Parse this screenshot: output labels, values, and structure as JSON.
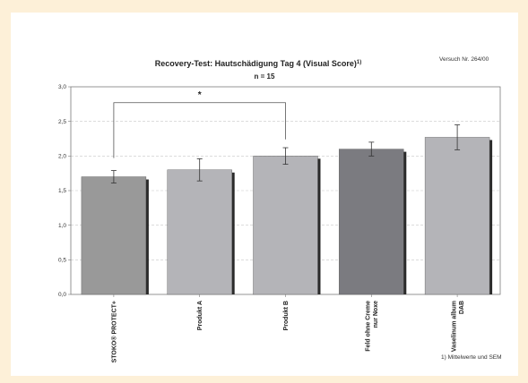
{
  "chart_data": {
    "type": "bar",
    "title": "Recovery-Test: Hautschädigung Tag 4 (Visual Score)",
    "title_superscript": "1)",
    "subtitle": "n = 15",
    "corner_note": "Versuch Nr. 264/00",
    "footnote": "1) Mittelwerte und SEM",
    "categories": [
      [
        "STOKO® PROTECT+"
      ],
      [
        "Produkt A"
      ],
      [
        "Produkt B"
      ],
      [
        "Feld ohne Creme",
        "nur Noxe"
      ],
      [
        "Vaselinum album",
        "DAB"
      ]
    ],
    "values": [
      1.7,
      1.8,
      2.0,
      2.1,
      2.27
    ],
    "errors": [
      0.09,
      0.16,
      0.12,
      0.1,
      0.18
    ],
    "bar_colors": [
      "#999999",
      "#b4b4b8",
      "#b4b4b8",
      "#7b7b80",
      "#b4b4b8"
    ],
    "ylim": [
      0,
      3.0
    ],
    "yticks": [
      "0,0",
      "0,5",
      "1,0",
      "1,5",
      "2,0",
      "2,5",
      "3,0"
    ],
    "significance": {
      "from": 0,
      "to": 2,
      "label": "*",
      "level": 2.77
    },
    "grid": true,
    "legend": "none"
  }
}
